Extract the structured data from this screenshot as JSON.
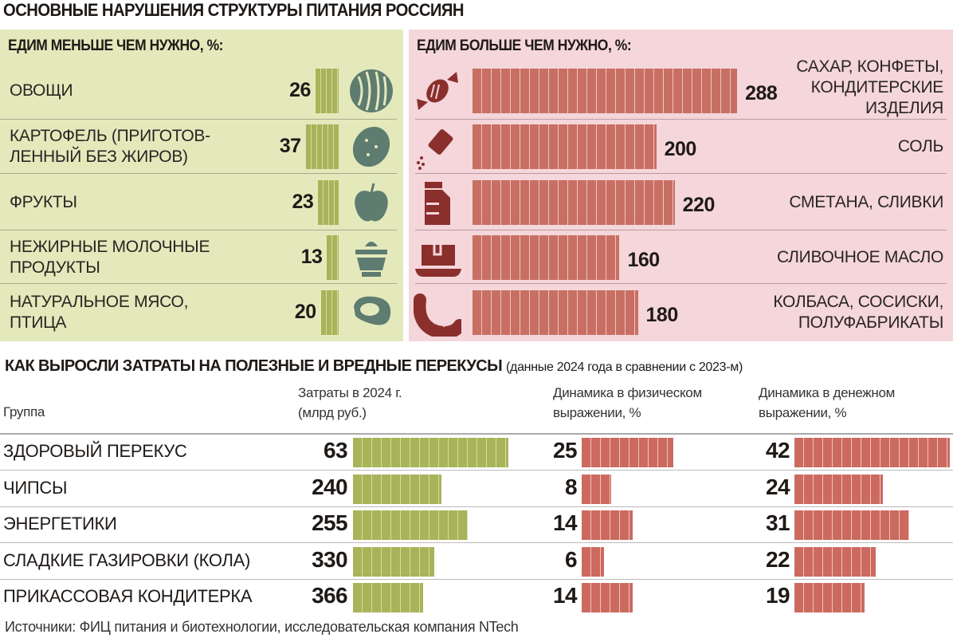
{
  "title": "ОСНОВНЫЕ НАРУШЕНИЯ  СТРУКТУРЫ ПИТАНИЯ РОССИЯН",
  "colors": {
    "green_panel": "#e4e9bc",
    "pink_panel": "#f4d6db",
    "green_bar": "#a8b35a",
    "red_bar": "#c86f63",
    "green_icon": "#5e7c6f",
    "red_icon": "#8a2f2c"
  },
  "chart_data": [
    {
      "type": "bar",
      "title": "ЕДИМ МЕНЬШЕ ЧЕМ НУЖНО, %:",
      "categories": [
        "ОВОЩИ",
        "КАРТОФЕЛЬ (ПРИГОТОВ-ЛЕННЫЙ БЕЗ ЖИРОВ)",
        "ФРУКТЫ",
        "НЕЖИРНЫЕ МОЛОЧНЫЕ ПРОДУКТЫ",
        "НАТУРАЛЬНОЕ МЯСО, ПТИЦА"
      ],
      "label_lines": [
        [
          "ОВОЩИ"
        ],
        [
          "КАРТОФЕЛЬ (ПРИГОТОВ-",
          "ЛЕННЫЙ БЕЗ ЖИРОВ)"
        ],
        [
          "ФРУКТЫ"
        ],
        [
          "НЕЖИРНЫЕ МОЛОЧНЫЕ",
          "ПРОДУКТЫ"
        ],
        [
          "НАТУРАЛЬНОЕ МЯСО,",
          "ПТИЦА"
        ]
      ],
      "values": [
        26,
        37,
        23,
        13,
        20
      ],
      "icons": [
        "watermelon-icon",
        "potato-icon",
        "apple-icon",
        "dairy-bowl-icon",
        "steak-icon"
      ]
    },
    {
      "type": "bar",
      "title": "ЕДИМ БОЛЬШЕ ЧЕМ НУЖНО, %:",
      "categories": [
        "САХАР, КОНФЕТЫ, КОНДИТЕРСКИЕ ИЗДЕЛИЯ",
        "СОЛЬ",
        "СМЕТАНА, СЛИВКИ",
        "СЛИВОЧНОЕ МАСЛО",
        "КОЛБАСА, СОСИСКИ, ПОЛУФАБРИКАТЫ"
      ],
      "label_lines": [
        [
          "САХАР, КОНФЕТЫ,",
          "КОНДИТЕРСКИЕ",
          "ИЗДЕЛИЯ"
        ],
        [
          "СОЛЬ"
        ],
        [
          "СМЕТАНА, СЛИВКИ"
        ],
        [
          "СЛИВОЧНОЕ МАСЛО"
        ],
        [
          "КОЛБАСА, СОСИСКИ,",
          "ПОЛУФАБРИКАТЫ"
        ]
      ],
      "values": [
        288,
        200,
        220,
        160,
        180
      ],
      "icons": [
        "candy-icon",
        "salt-shaker-icon",
        "milk-carton-icon",
        "butter-dish-icon",
        "sausage-icon"
      ]
    },
    {
      "type": "table",
      "title": "КАК ВЫРОСЛИ ЗАТРАТЫ НА ПОЛЕЗНЫЕ И ВРЕДНЫЕ ПЕРЕКУСЫ",
      "subtitle": "(данные 2024 года в сравнении с 2023-м)",
      "columns": [
        "Группа",
        "Затраты в 2024 г. (млрд руб.)",
        "Динамика в физическом выражении, %",
        "Динамика в денежном выражении, %"
      ],
      "column_lines": [
        [
          "Группа"
        ],
        [
          "Затраты в 2024 г.",
          "(млрд руб.)"
        ],
        [
          "Динамика в физическом",
          "выражении, %"
        ],
        [
          "Динамика в денежном",
          "выражении, %"
        ]
      ],
      "rows": [
        {
          "group": "ЗДОРОВЫЙ ПЕРЕКУС",
          "spend": 63,
          "physical_pct": 25,
          "money_pct": 42
        },
        {
          "group": "ЧИПСЫ",
          "spend": 240,
          "physical_pct": 8,
          "money_pct": 24
        },
        {
          "group": "ЭНЕРГЕТИКИ",
          "spend": 255,
          "physical_pct": 14,
          "money_pct": 31
        },
        {
          "group": "СЛАДКИЕ ГАЗИРОВКИ (КОЛА)",
          "spend": 330,
          "physical_pct": 6,
          "money_pct": 22
        },
        {
          "group": "ПРИКАССОВАЯ КОНДИТЕРКА",
          "spend": 366,
          "physical_pct": 14,
          "money_pct": 19
        }
      ]
    }
  ],
  "footer": "Источники:  ФИЦ питания и биотехнологии, исследовательская компания NTech"
}
